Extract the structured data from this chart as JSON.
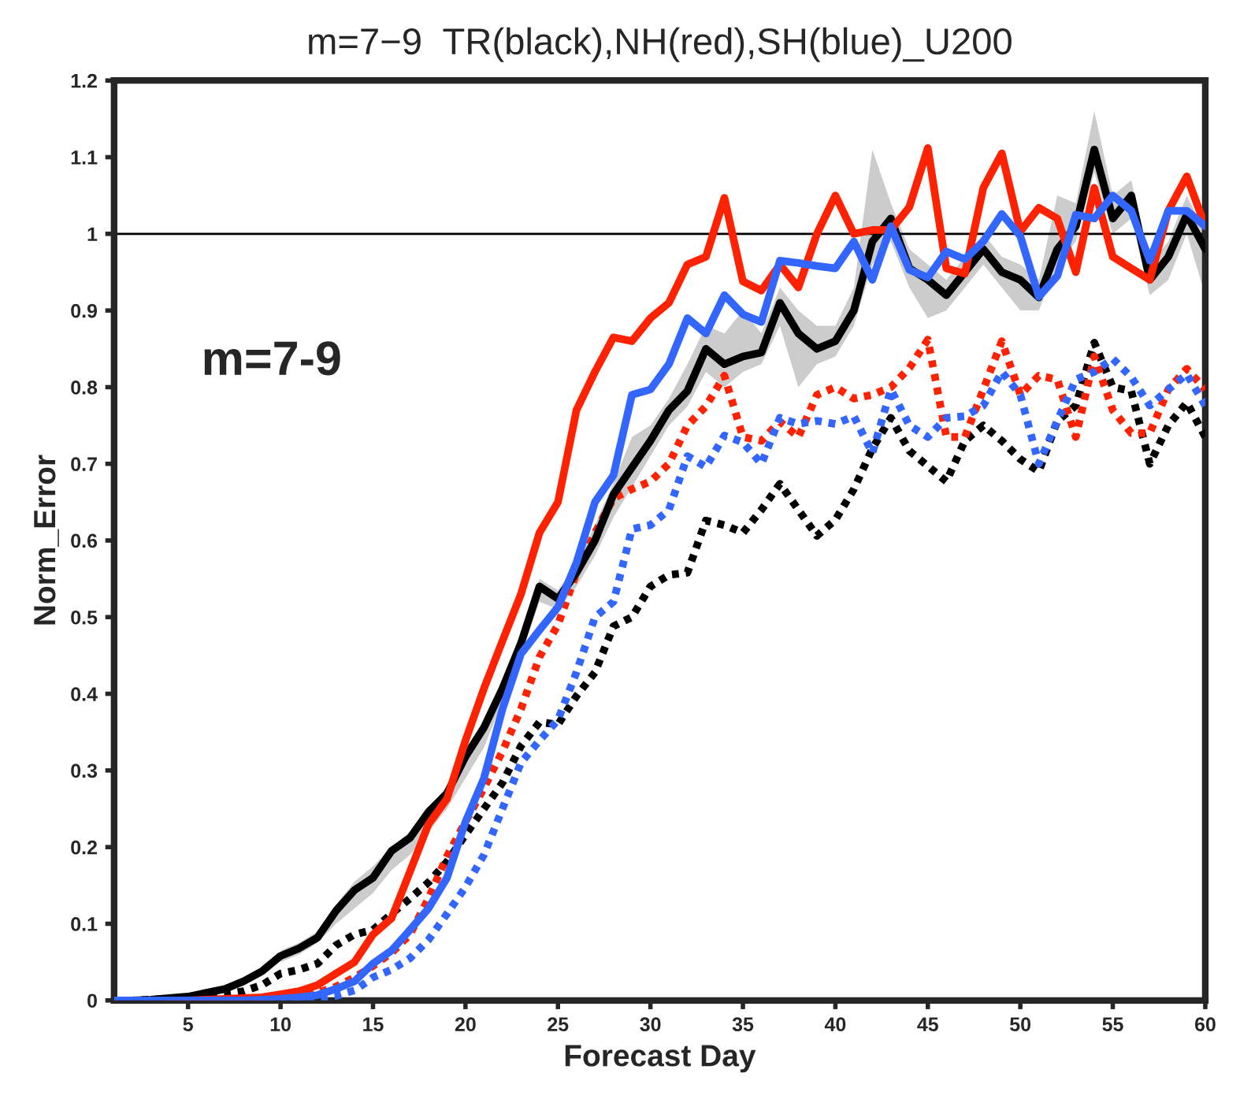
{
  "chart_data": {
    "type": "line",
    "title": "m=7−9  TR(black),NH(red),SH(blue)_U200",
    "xlabel": "Forecast Day",
    "ylabel": "Norm_Error",
    "annotations": [
      "m=7-9"
    ],
    "x": [
      1,
      2,
      3,
      4,
      5,
      6,
      7,
      8,
      9,
      10,
      11,
      12,
      13,
      14,
      15,
      16,
      17,
      18,
      19,
      20,
      21,
      22,
      23,
      24,
      25,
      26,
      27,
      28,
      29,
      30,
      31,
      32,
      33,
      34,
      35,
      36,
      37,
      38,
      39,
      40,
      41,
      42,
      43,
      44,
      45,
      46,
      47,
      48,
      49,
      50,
      51,
      52,
      53,
      54,
      55,
      56,
      57,
      58,
      59,
      60
    ],
    "xlim": [
      1,
      60
    ],
    "xticks": [
      5,
      10,
      15,
      20,
      25,
      30,
      35,
      40,
      45,
      50,
      55,
      60
    ],
    "ylim": [
      0,
      1.2
    ],
    "yticks": [
      0,
      0.1,
      0.2,
      0.3,
      0.4,
      0.5,
      0.6,
      0.7,
      0.8,
      0.9,
      1,
      1.1,
      1.2
    ],
    "ref_lines": [
      {
        "axis": "y",
        "value": 1,
        "color": "#000000"
      }
    ],
    "grid": false,
    "legend": false,
    "series": [
      {
        "color": "#000000",
        "line_style": "dotted",
        "values": [
          0,
          0,
          0.001,
          0.002,
          0.003,
          0.005,
          0.008,
          0.012,
          0.02,
          0.035,
          0.04,
          0.048,
          0.072,
          0.086,
          0.092,
          0.113,
          0.133,
          0.154,
          0.181,
          0.216,
          0.25,
          0.284,
          0.332,
          0.363,
          0.36,
          0.397,
          0.428,
          0.488,
          0.5,
          0.54,
          0.555,
          0.558,
          0.626,
          0.62,
          0.61,
          0.64,
          0.674,
          0.64,
          0.606,
          0.627,
          0.667,
          0.72,
          0.76,
          0.717,
          0.697,
          0.677,
          0.73,
          0.75,
          0.73,
          0.706,
          0.69,
          0.756,
          0.776,
          0.858,
          0.8,
          0.795,
          0.7,
          0.75,
          0.78,
          0.735
        ]
      },
      {
        "color": "#ff2200",
        "line_style": "dotted",
        "values": [
          null,
          null,
          null,
          0,
          0,
          0,
          0,
          0.001,
          0.002,
          0.003,
          0.005,
          0.01,
          0.018,
          0.03,
          0.045,
          0.062,
          0.086,
          0.133,
          0.188,
          0.233,
          0.277,
          0.325,
          0.38,
          0.448,
          0.49,
          0.558,
          0.61,
          0.655,
          0.667,
          0.677,
          0.7,
          0.75,
          0.775,
          0.815,
          0.735,
          0.73,
          0.755,
          0.735,
          0.79,
          0.8,
          0.785,
          0.79,
          0.8,
          0.825,
          0.862,
          0.735,
          0.735,
          0.797,
          0.86,
          0.79,
          0.815,
          0.81,
          0.735,
          0.84,
          0.77,
          0.74,
          0.74,
          0.797,
          0.824,
          0.797
        ]
      },
      {
        "color": "#3366ff",
        "line_style": "dotted",
        "values": [
          0,
          0,
          0,
          0,
          0,
          0,
          0,
          0,
          0,
          0,
          0.001,
          0.003,
          0.006,
          0.013,
          0.03,
          0.04,
          0.055,
          0.079,
          0.113,
          0.148,
          0.19,
          0.25,
          0.31,
          0.339,
          0.366,
          0.428,
          0.5,
          0.52,
          0.615,
          0.62,
          0.64,
          0.71,
          0.696,
          0.737,
          0.728,
          0.7,
          0.76,
          0.752,
          0.756,
          0.752,
          0.762,
          0.714,
          0.797,
          0.75,
          0.735,
          0.76,
          0.762,
          0.776,
          0.82,
          0.79,
          0.7,
          0.756,
          0.81,
          0.82,
          0.837,
          0.813,
          0.776,
          0.797,
          0.817,
          0.776
        ]
      },
      {
        "color": "#000000",
        "line_style": "solid",
        "values": [
          0,
          0,
          0.001,
          0.003,
          0.005,
          0.01,
          0.015,
          0.025,
          0.038,
          0.058,
          0.068,
          0.082,
          0.117,
          0.144,
          0.16,
          0.195,
          0.212,
          0.246,
          0.27,
          0.318,
          0.356,
          0.407,
          0.466,
          0.54,
          0.524,
          0.558,
          0.6,
          0.66,
          0.695,
          0.73,
          0.77,
          0.795,
          0.85,
          0.83,
          0.84,
          0.845,
          0.91,
          0.87,
          0.85,
          0.86,
          0.9,
          0.99,
          1.02,
          0.955,
          0.94,
          0.92,
          0.95,
          0.98,
          0.95,
          0.94,
          0.917,
          0.98,
          1.01,
          1.11,
          1.02,
          1.05,
          0.94,
          0.97,
          1.025,
          0.98
        ],
        "lower": [
          null,
          null,
          null,
          null,
          null,
          null,
          null,
          null,
          null,
          0.05,
          0.06,
          0.075,
          0.1,
          0.12,
          0.14,
          0.17,
          0.19,
          0.22,
          0.25,
          0.29,
          0.33,
          0.39,
          0.45,
          0.52,
          0.51,
          0.54,
          0.58,
          0.63,
          0.67,
          0.71,
          0.75,
          0.775,
          0.82,
          0.8,
          0.82,
          0.83,
          0.88,
          0.8,
          0.83,
          0.84,
          0.88,
          0.96,
          0.99,
          0.93,
          0.89,
          0.9,
          0.93,
          0.96,
          0.93,
          0.9,
          0.9,
          0.96,
          0.99,
          1.08,
          1.0,
          1.02,
          0.92,
          0.94,
          1.0,
          0.92
        ],
        "upper": [
          null,
          null,
          null,
          null,
          null,
          null,
          null,
          null,
          null,
          0.065,
          0.075,
          0.09,
          0.125,
          0.155,
          0.175,
          0.2,
          0.22,
          0.25,
          0.28,
          0.325,
          0.365,
          0.415,
          0.475,
          0.55,
          0.535,
          0.57,
          0.62,
          0.675,
          0.735,
          0.75,
          0.785,
          0.83,
          0.88,
          0.87,
          0.9,
          0.87,
          0.93,
          0.9,
          0.88,
          0.88,
          0.93,
          1.11,
          1.04,
          0.98,
          0.96,
          0.94,
          0.97,
          1.0,
          0.97,
          0.96,
          0.94,
          1.05,
          1.04,
          1.16,
          1.05,
          1.07,
          0.96,
          0.99,
          1.05,
          1.0
        ]
      },
      {
        "color": "#ff2200",
        "line_style": "solid",
        "values": [
          null,
          null,
          null,
          0,
          0,
          0.001,
          0.002,
          0.003,
          0.004,
          0.008,
          0.012,
          0.02,
          0.035,
          0.05,
          0.086,
          0.107,
          0.168,
          0.23,
          0.263,
          0.339,
          0.407,
          0.469,
          0.53,
          0.61,
          0.65,
          0.77,
          0.82,
          0.865,
          0.86,
          0.89,
          0.91,
          0.96,
          0.97,
          1.047,
          0.938,
          0.926,
          0.96,
          0.93,
          1.0,
          1.05,
          1.0,
          1.005,
          1.005,
          1.035,
          1.112,
          0.955,
          0.948,
          1.06,
          1.105,
          1.003,
          1.034,
          1.02,
          0.95,
          1.06,
          0.97,
          0.955,
          0.94,
          1.03,
          1.075,
          1.01
        ]
      },
      {
        "color": "#3366ff",
        "line_style": "solid",
        "values": [
          0,
          0,
          0,
          0,
          0,
          0,
          0,
          0,
          0.001,
          0.002,
          0.004,
          0.007,
          0.015,
          0.025,
          0.048,
          0.065,
          0.092,
          0.12,
          0.16,
          0.233,
          0.29,
          0.38,
          0.452,
          0.483,
          0.513,
          0.571,
          0.65,
          0.685,
          0.79,
          0.797,
          0.83,
          0.89,
          0.87,
          0.92,
          0.895,
          0.885,
          0.965,
          0.962,
          0.958,
          0.955,
          0.99,
          0.94,
          1.01,
          0.953,
          0.943,
          0.977,
          0.967,
          0.99,
          1.026,
          0.997,
          0.918,
          0.945,
          1.025,
          1.02,
          1.05,
          1.03,
          0.965,
          1.03,
          1.03,
          1.01
        ]
      }
    ]
  }
}
